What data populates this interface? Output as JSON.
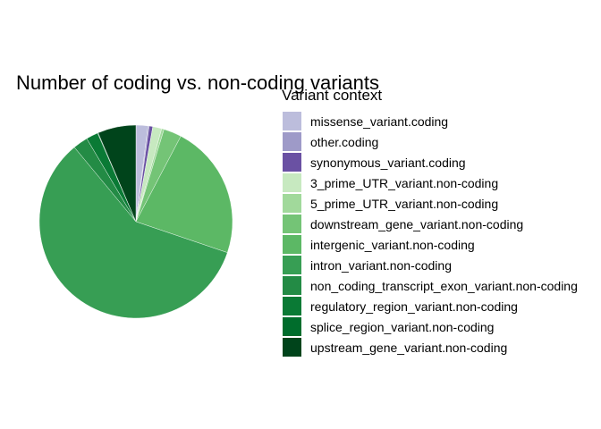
{
  "chart_data": {
    "type": "pie",
    "title": "Number of coding vs. non-coding variants",
    "legend_title": "Variant context",
    "legend_position": "right",
    "series": [
      {
        "name": "missense_variant.coding",
        "value": 2.0,
        "color": "#bcbddc"
      },
      {
        "name": "other.coding",
        "value": 0.2,
        "color": "#9e9ac8"
      },
      {
        "name": "synonymous_variant.coding",
        "value": 0.6,
        "color": "#6a51a3"
      },
      {
        "name": "3_prime_UTR_variant.non-coding",
        "value": 1.5,
        "color": "#c7e9c0"
      },
      {
        "name": "5_prime_UTR_variant.non-coding",
        "value": 0.4,
        "color": "#a1d99b"
      },
      {
        "name": "downstream_gene_variant.non-coding",
        "value": 3.0,
        "color": "#74c476"
      },
      {
        "name": "intergenic_variant.non-coding",
        "value": 22.5,
        "color": "#5cb865"
      },
      {
        "name": "intron_variant.non-coding",
        "value": 58.8,
        "color": "#379e54"
      },
      {
        "name": "non_coding_transcript_exon_variant.non-coding",
        "value": 2.5,
        "color": "#238b45"
      },
      {
        "name": "regulatory_region_variant.non-coding",
        "value": 2.0,
        "color": "#0a7a35"
      },
      {
        "name": "splice_region_variant.non-coding",
        "value": 0.1,
        "color": "#006d2c"
      },
      {
        "name": "upstream_gene_variant.non-coding",
        "value": 6.4,
        "color": "#00441b"
      }
    ]
  }
}
